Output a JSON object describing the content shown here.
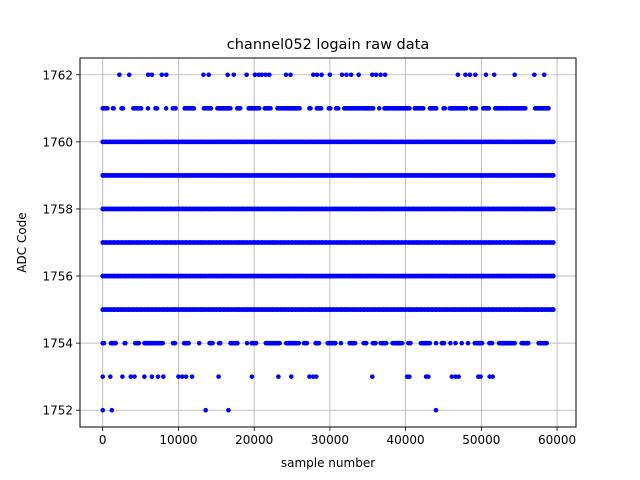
{
  "chart_data": {
    "type": "scatter",
    "title": "channel052 logain raw data",
    "xlabel": "sample number",
    "ylabel": "ADC Code",
    "xlim": [
      -3000,
      62500
    ],
    "ylim": [
      1751.5,
      1762.5
    ],
    "x_ticks": [
      0,
      10000,
      20000,
      30000,
      40000,
      50000,
      60000
    ],
    "y_ticks": [
      1752,
      1754,
      1756,
      1758,
      1760,
      1762
    ],
    "grid": true,
    "marker_color": "#0000ff",
    "series": [
      {
        "dense_levels": [
          1755,
          1756,
          1757,
          1758,
          1759,
          1760
        ],
        "dense_x_range": [
          0,
          59500
        ],
        "level_1754_x_range": [
          0,
          59500
        ],
        "level_1761_x_range": [
          0,
          59500
        ],
        "level_1762_x": [
          2200,
          3500,
          6000,
          6500,
          7800,
          8400,
          13300,
          14000,
          16500,
          17300,
          19000,
          20100,
          20600,
          21000,
          21500,
          22000,
          24200,
          24800,
          27800,
          28300,
          28900,
          30000,
          31600,
          32200,
          32800,
          33800,
          35600,
          36100,
          36700,
          37300,
          46900,
          47900,
          48500,
          49200,
          50600,
          51700,
          54400,
          57000,
          58300
        ],
        "level_1753_x": [
          0,
          1000,
          2600,
          3700,
          4200,
          5500,
          6500,
          7300,
          8000,
          10000,
          10500,
          11000,
          11800,
          15300,
          19700,
          23200,
          24900,
          27300,
          27800,
          28200,
          35600,
          40200,
          40500,
          42700,
          43000,
          46100,
          46600,
          47000,
          49600,
          49900,
          51100,
          51500
        ],
        "level_1752_x": [
          0,
          1200,
          13600,
          16600,
          44000
        ]
      }
    ]
  }
}
